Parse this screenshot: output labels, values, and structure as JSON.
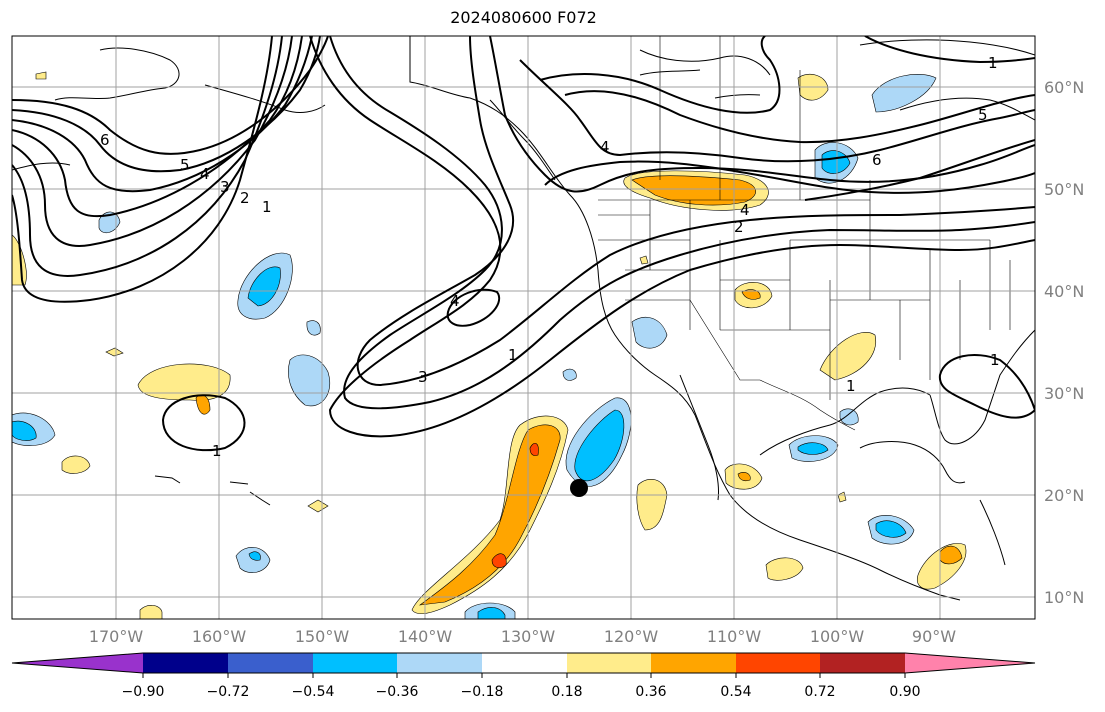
{
  "title": "2024080600 F072",
  "map": {
    "lon_labels": [
      "170°W",
      "160°W",
      "150°W",
      "140°W",
      "130°W",
      "120°W",
      "110°W",
      "100°W",
      "90°W"
    ],
    "lat_labels": [
      "60°N",
      "50°N",
      "40°N",
      "30°N",
      "20°N",
      "10°N"
    ],
    "contour_labels": [
      "1",
      "2",
      "3",
      "4",
      "5",
      "6",
      "1",
      "2",
      "4",
      "4",
      "5",
      "6",
      "1",
      "3",
      "4",
      "1",
      "1",
      "1"
    ],
    "marker": "black-dot"
  },
  "colorbar": {
    "ticks": [
      "−0.90",
      "−0.72",
      "−0.54",
      "−0.36",
      "−0.18",
      "0.18",
      "0.36",
      "0.54",
      "0.72",
      "0.90"
    ],
    "colors": [
      "#9932cc",
      "#00008b",
      "#3a5fcd",
      "#00bfff",
      "#add8f7",
      "#ffffff",
      "#ffec8b",
      "#ffa500",
      "#ff4500",
      "#b22222",
      "#ff82ab"
    ]
  }
}
